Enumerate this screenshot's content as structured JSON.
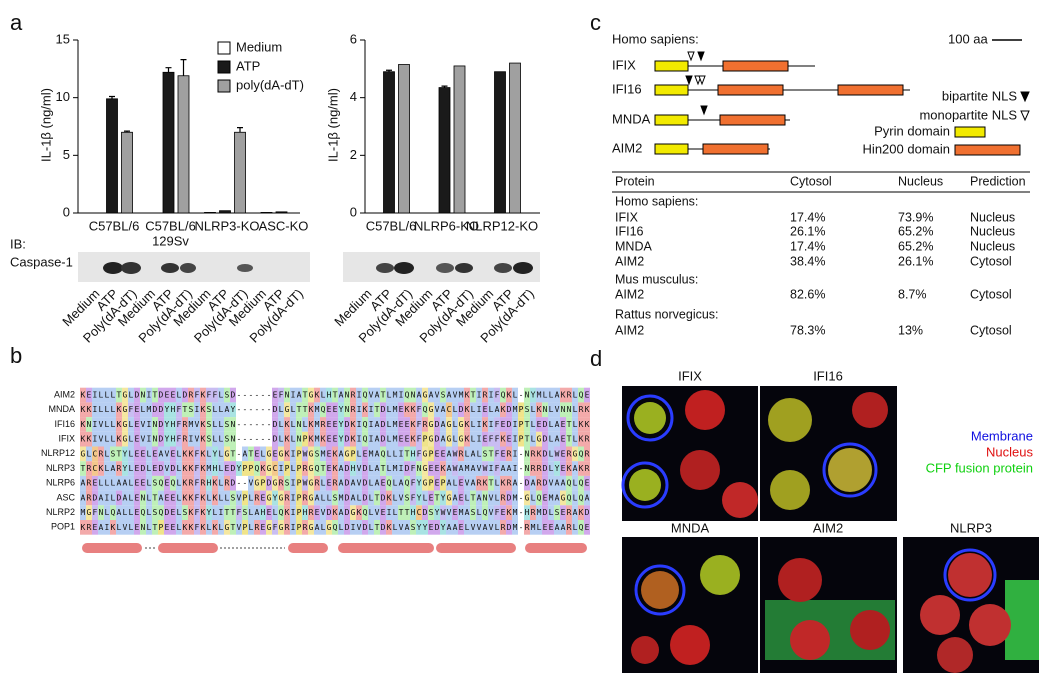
{
  "panel_labels": [
    "a",
    "b",
    "c",
    "d"
  ],
  "chart_data": [
    {
      "type": "bar",
      "y_label": "IL-1β (ng/ml)",
      "categories": [
        "C57BL/6",
        [
          "C57BL/6",
          "129Sv"
        ],
        "NLRP3-KO",
        "ASC-KO"
      ],
      "series": [
        {
          "name": "Medium",
          "color": "#ffffff",
          "values": [
            0,
            0,
            0.05,
            0.05
          ],
          "error": [
            null,
            null,
            null,
            null
          ]
        },
        {
          "name": "ATP",
          "color": "#1a1a1a",
          "values": [
            9.9,
            12.2,
            0.2,
            0.1
          ],
          "error": [
            0.2,
            0.4,
            null,
            null
          ]
        },
        {
          "name": "poly(dA-dT)",
          "color": "#a0a0a0",
          "values": [
            7.0,
            11.9,
            7.0,
            0
          ],
          "error": [
            0.1,
            1.4,
            0.4,
            null
          ]
        }
      ],
      "ylim": [
        0,
        15
      ],
      "yticks": [
        0,
        5,
        10,
        15
      ],
      "legend": true
    },
    {
      "type": "bar",
      "y_label": "IL-1β (ng/ml)",
      "categories": [
        "C57BL/6",
        "NLRP6-KO",
        "NLRP12-KO"
      ],
      "series": [
        {
          "color": "#1a1a1a",
          "values": [
            4.9,
            4.35,
            4.9
          ],
          "error": [
            0.05,
            0.05,
            null
          ]
        },
        {
          "color": "#a0a0a0",
          "values": [
            5.15,
            5.1,
            5.2
          ],
          "error": [
            null,
            null,
            null
          ]
        }
      ],
      "ylim": [
        0,
        6
      ],
      "yticks": [
        0,
        2,
        4,
        6
      ],
      "legend": false
    }
  ],
  "blot": {
    "prefix": "IB:",
    "label": "Caspase-1",
    "lanes_left": [
      "Medium",
      "ATP",
      "Poly(dA-dT)",
      "Medium",
      "ATP",
      "Poly(dA-dT)",
      "Medium",
      "ATP",
      "Poly(dA-dT)",
      "Medium",
      "ATP",
      "Poly(dA-dT)"
    ],
    "lanes_right": [
      "Medium",
      "ATP",
      "Poly(dA-dT)",
      "Medium",
      "ATP",
      "Poly(dA-dT)",
      "Medium",
      "ATP",
      "Poly(dA-dT)"
    ]
  },
  "alignment": {
    "names": [
      "AIM2",
      "MNDA",
      "IFI16",
      "IFIX",
      "NLRP12",
      "NLRP3",
      "NLRP6",
      "ASC",
      "NLRP2",
      "POP1"
    ],
    "sequences": [
      "KEILLLTGLDNITDEELDRFKFFLSD------EFNIATGKLHTANRIQVATLMIQNAGAVSAVMKTIRIFQKL-NYMLLAKRLQE",
      "KKILLLKGFELMDDYHFTSIKSLLAY------DLGLTTKMQEEYNRIKITDLMEKKFQGVACLDKLIELAKDMPSLKNLVNNLRK",
      "KNIVLLKGLEVINDYHFRMVKSLLSN------DLKLNLKMREEYDKIQIADLMEEKFRGDAGLGKLIKIFEDIPTLEDLAETLKK",
      "KKIVLLKGLEVINDYHFRIVKSLLSN------DLKLNPKMKEEYDKIQIADLMEEKFPGDAGLGKLIEFFKEIPTLGDLAETLKR",
      "GLCRLSTYLEELEAVELKKFKLYLGT-ATELGEGKIPWGSMEKAGPLEMAQLLITHFGPEEAWRLALSTFERI-NRKDLWERGQR",
      "TRCKLARYLEDLEDVDLKKFKMHLEDYPPQKGCIPLPRGQTEKADHVDLATLMIDFNGEEKAWAMAVWIFAAI-NRRDLYEKAKR",
      "ARELLLAALEELSQEQLKRFRHKLRD--VGPDGRSIPWGRLERADAVDLAEQLAQFYGPEPALEVARKTLKRA-DARDVAAQLQE",
      "ARDAILDALENLTAEELKKFKLKLLSVPLREGYGRIPRGALLSMDALDLTDKLVSFYLETYGAELTANVLRDM-GLQEMAGQLQA",
      "MGFNLQALLEQLSQDELSKFKYLITTFSLAHELQKIPHREVDKADGKQLVEILTTHCDSYWVEMASLQVFEKM-HRMDLSERAKD",
      "KREAIKLVLENLTPEELKKFKLKLGTVPLREGFGRIPRGALGQLDIVDLTDKLVASYYEDYAAELVVAVLRDM-RMLEEAARLQE"
    ]
  },
  "domains": {
    "species": "Homo sapiens:",
    "scale": "100 aa",
    "proteins": [
      "IFIX",
      "IFI16",
      "MNDA",
      "AIM2"
    ],
    "legend": [
      "bipartite NLS",
      "monopartite NLS",
      "Pyrin domain",
      "Hin200 domain"
    ]
  },
  "table": {
    "header": [
      "Protein",
      "Cytosol",
      "Nucleus",
      "Prediction"
    ],
    "rows": [
      [
        "Homo sapiens:"
      ],
      [
        "IFIX",
        "17.4%",
        "73.9%",
        "Nucleus"
      ],
      [
        "IFI16",
        "26.1%",
        "65.2%",
        "Nucleus"
      ],
      [
        "MNDA",
        "17.4%",
        "65.2%",
        "Nucleus"
      ],
      [
        "AIM2",
        "38.4%",
        "26.1%",
        "Cytosol"
      ],
      [
        "Mus musculus:"
      ],
      [
        "AIM2",
        "82.6%",
        "8.7%",
        "Cytosol"
      ],
      [
        "Rattus norvegicus:"
      ],
      [
        "AIM2",
        "78.3%",
        "13%",
        "Cytosol"
      ]
    ]
  },
  "microscopy": {
    "labels": [
      "IFIX",
      "IFI16",
      "MNDA",
      "AIM2",
      "NLRP3"
    ],
    "legend": [
      "Membrane",
      "Nucleus",
      "CFP fusion protein"
    ]
  }
}
